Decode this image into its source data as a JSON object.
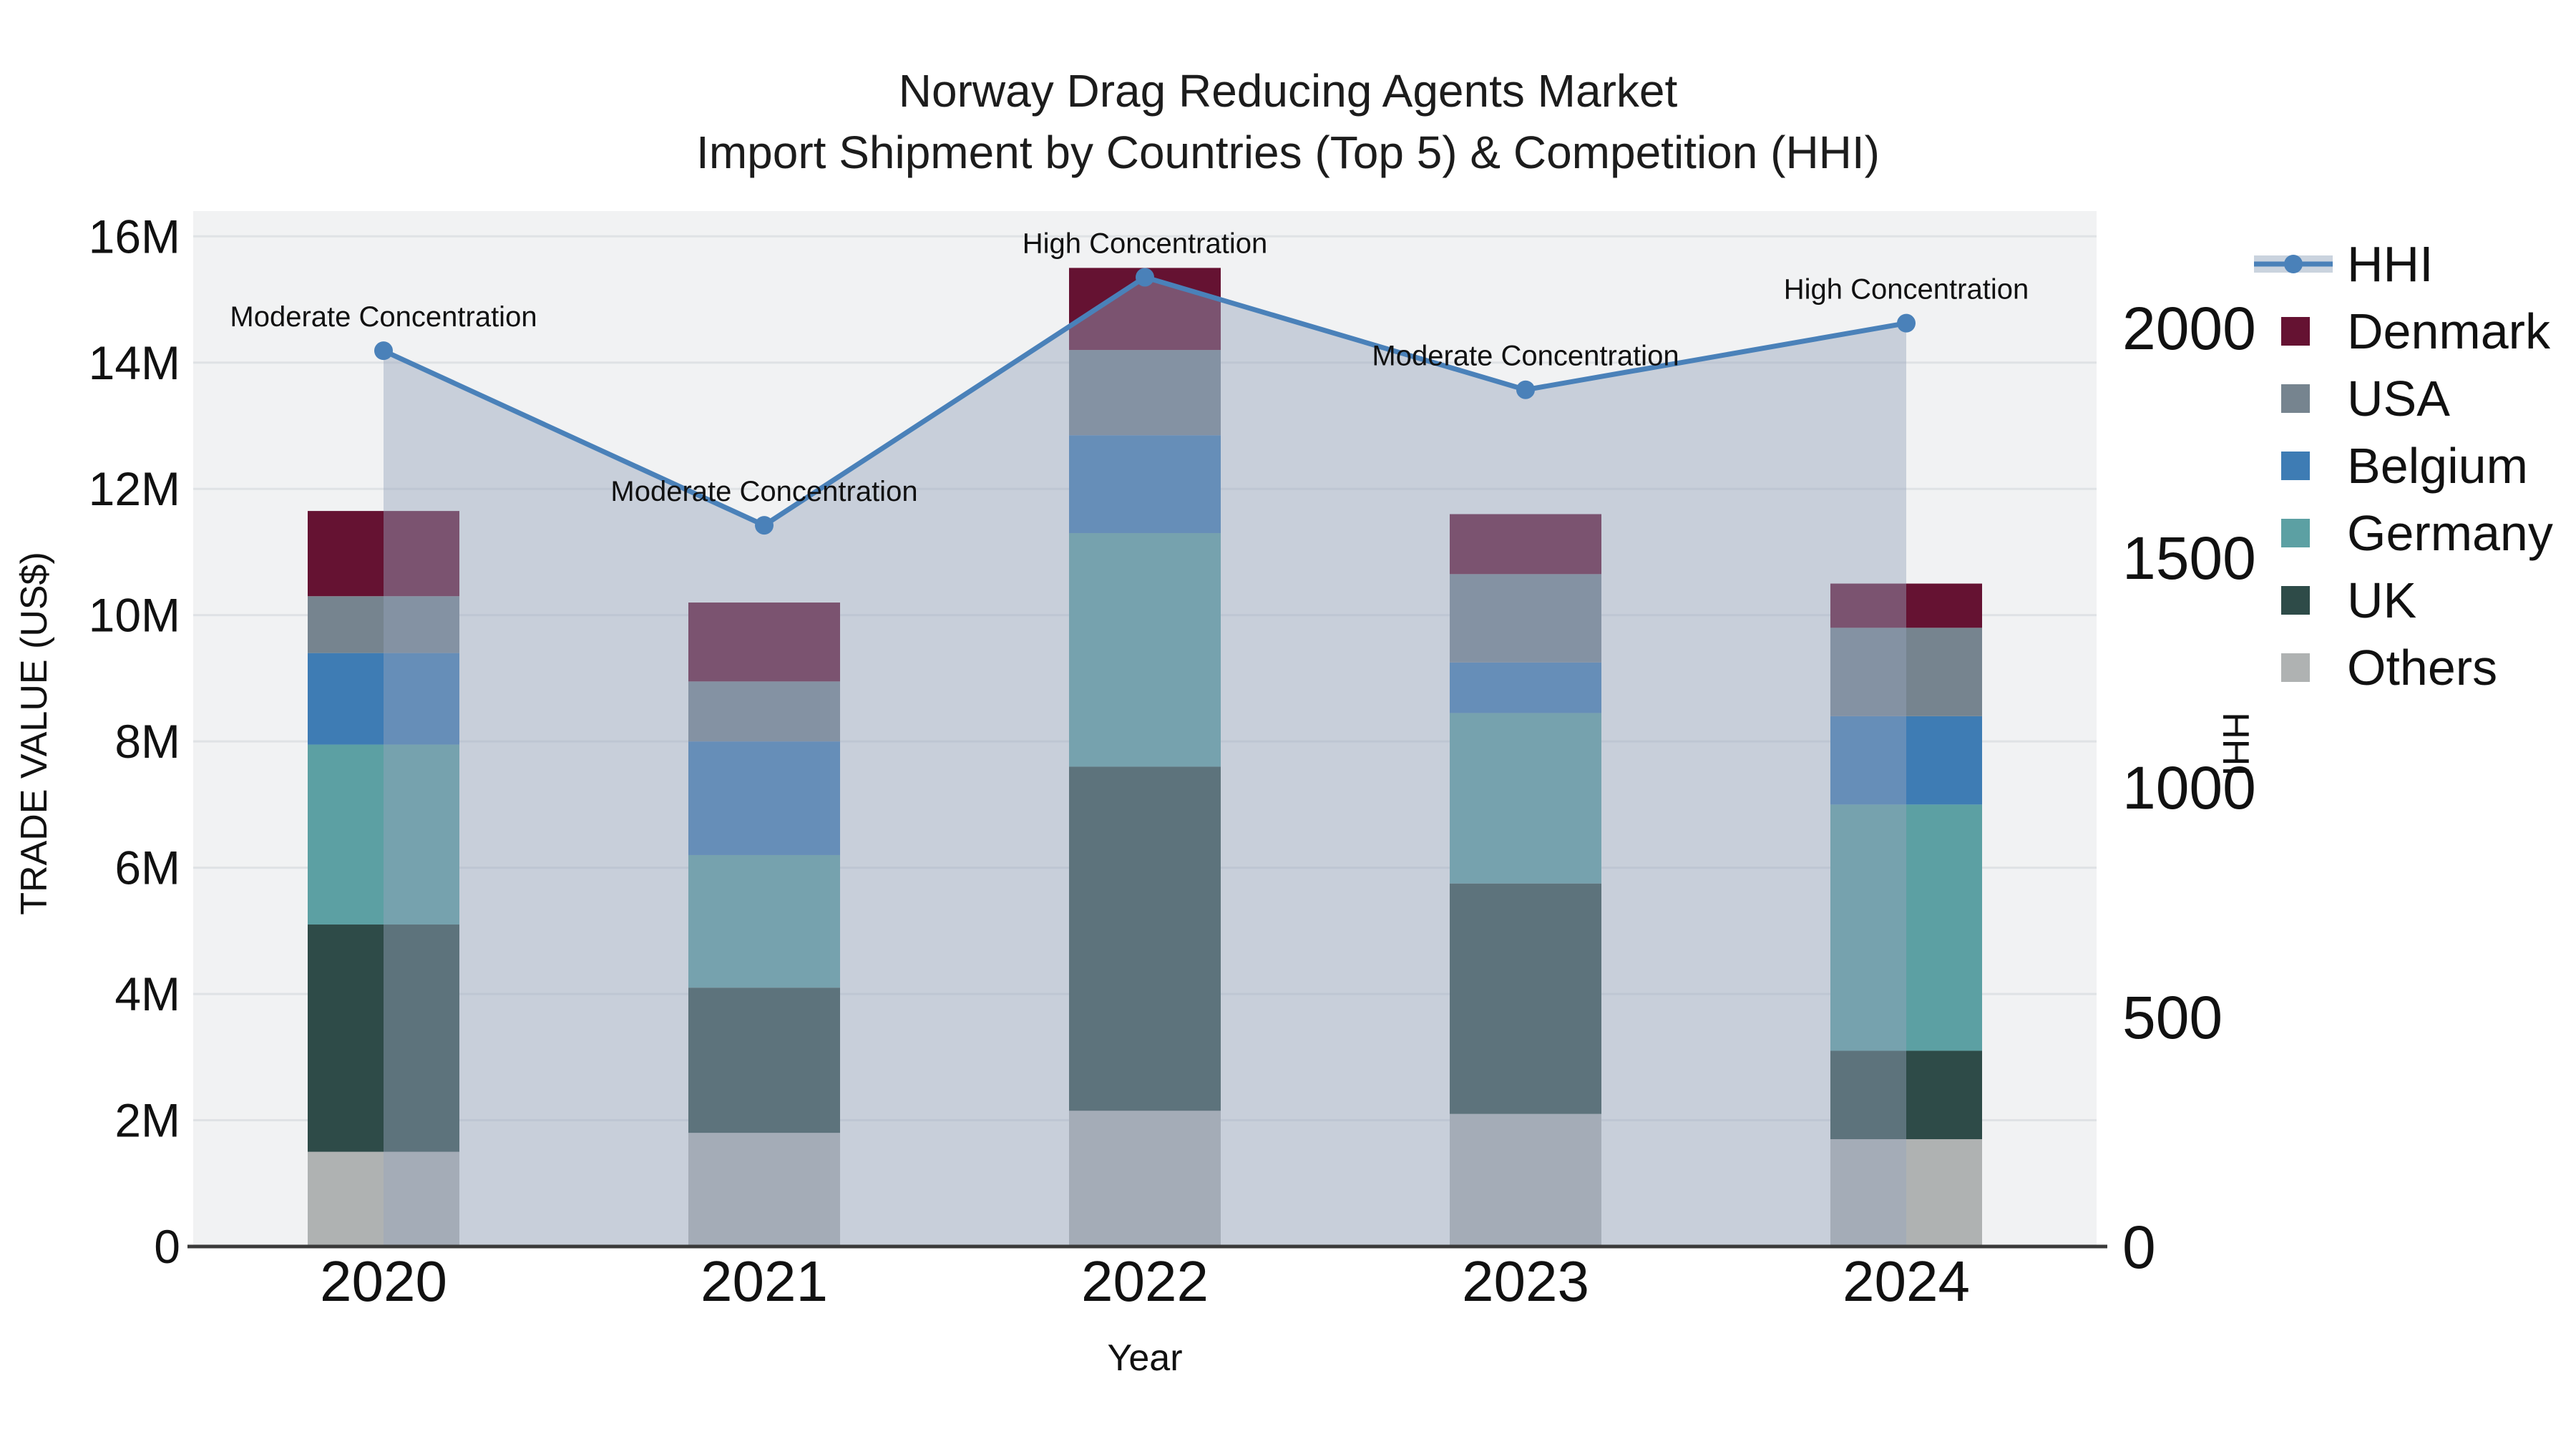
{
  "title": {
    "line1": "Norway Drag Reducing Agents Market",
    "line2": "Import Shipment by Countries (Top 5) & Competition (HHI)"
  },
  "axes": {
    "x_title": "Year",
    "y_left_title": "TRADE VALUE (US$)",
    "y_right_title": "HHI"
  },
  "legend": {
    "items": [
      {
        "label": "HHI",
        "color_key": "hhi_line",
        "symbol": "line"
      },
      {
        "label": "Denmark",
        "color_key": "denmark",
        "symbol": "square"
      },
      {
        "label": "USA",
        "color_key": "usa",
        "symbol": "square"
      },
      {
        "label": "Belgium",
        "color_key": "belgium",
        "symbol": "square"
      },
      {
        "label": "Germany",
        "color_key": "germany",
        "symbol": "square"
      },
      {
        "label": "UK",
        "color_key": "uk",
        "symbol": "square"
      },
      {
        "label": "Others",
        "color_key": "others",
        "symbol": "square"
      }
    ]
  },
  "colors": {
    "hhi_line": "#4A81B9",
    "hhi_area": "rgba(150,164,188,0.45)",
    "legend_area_swatch": "#CAD3DE",
    "denmark": "#651232",
    "usa": "#76848F",
    "belgium": "#3E7CB4",
    "germany": "#5CA0A3",
    "uk": "#2E4B48",
    "others": "#AFB2B2",
    "plot_bg": "#F1F2F3",
    "gridline": "#DFE2E5",
    "axis_line": "#3A3A3A",
    "text": "#111111"
  },
  "chart_data": {
    "type": "bar+line",
    "title": "Norway Drag Reducing Agents Market — Import Shipment by Countries (Top 5) & Competition (HHI)",
    "categories": [
      "2020",
      "2021",
      "2022",
      "2023",
      "2024"
    ],
    "xlabel": "Year",
    "ylabel_left": "TRADE VALUE (US$)",
    "ylabel_right": "HHI",
    "stack_order_bottom_to_top": [
      "Others",
      "UK",
      "Germany",
      "Belgium",
      "USA",
      "Denmark"
    ],
    "series": [
      {
        "name": "Denmark",
        "values_musd": [
          1.35,
          1.25,
          1.3,
          0.95,
          0.7
        ]
      },
      {
        "name": "USA",
        "values_musd": [
          0.9,
          0.95,
          1.35,
          1.4,
          1.4
        ]
      },
      {
        "name": "Belgium",
        "values_musd": [
          1.45,
          1.8,
          1.55,
          0.8,
          1.4
        ]
      },
      {
        "name": "Germany",
        "values_musd": [
          2.85,
          2.1,
          3.7,
          2.7,
          3.9
        ]
      },
      {
        "name": "UK",
        "values_musd": [
          3.6,
          2.3,
          5.45,
          3.65,
          1.4
        ]
      },
      {
        "name": "Others",
        "values_musd": [
          1.5,
          1.8,
          2.15,
          2.1,
          1.7
        ]
      }
    ],
    "line_series": {
      "name": "HHI",
      "axis": "right",
      "values": [
        1950,
        1570,
        2110,
        1865,
        2010
      ],
      "area_fill": true
    },
    "annotations": [
      "Moderate Concentration",
      "Moderate Concentration",
      "High Concentration",
      "Moderate Concentration",
      "High Concentration"
    ],
    "y_left": {
      "ticks": [
        "0",
        "2M",
        "4M",
        "6M",
        "8M",
        "10M",
        "12M",
        "14M",
        "16M"
      ],
      "tick_values_musd": [
        0,
        2,
        4,
        6,
        8,
        10,
        12,
        14,
        16
      ],
      "max_musd": 16.4
    },
    "y_right": {
      "ticks": [
        "0",
        "500",
        "1000",
        "1500",
        "2000"
      ],
      "tick_values": [
        0,
        500,
        1000,
        1500,
        2000
      ],
      "max": 2254
    },
    "grid": "horizontal",
    "legend_position": "right"
  }
}
